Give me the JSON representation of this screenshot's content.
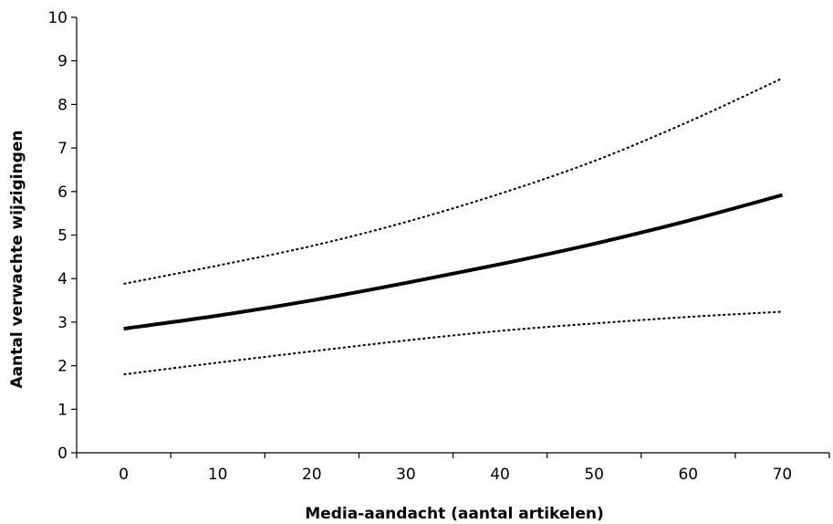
{
  "chart_data": {
    "type": "line",
    "title": "",
    "xlabel": "Media-aandacht (aantal artikelen)",
    "ylabel": "Aantal verwachte wijzigingen",
    "xlim": [
      -5,
      75
    ],
    "ylim": [
      0,
      10
    ],
    "x_ticks": [
      0,
      10,
      20,
      30,
      40,
      50,
      60,
      70
    ],
    "y_ticks": [
      0,
      1,
      2,
      3,
      4,
      5,
      6,
      7,
      8,
      9,
      10
    ],
    "grid": false,
    "legend": "none",
    "x": [
      0,
      10,
      20,
      30,
      40,
      50,
      60,
      70
    ],
    "series": [
      {
        "values": [
          3.88,
          4.3,
          4.75,
          5.3,
          5.95,
          6.7,
          7.6,
          8.6
        ],
        "style": "dotted",
        "width": 2,
        "color": "#000000"
      },
      {
        "values": [
          2.85,
          3.15,
          3.5,
          3.9,
          4.33,
          4.8,
          5.33,
          5.92
        ],
        "style": "solid",
        "width": 4,
        "color": "#000000"
      },
      {
        "values": [
          1.8,
          2.07,
          2.33,
          2.58,
          2.8,
          2.97,
          3.12,
          3.24
        ],
        "style": "dotted",
        "width": 2,
        "color": "#000000"
      }
    ]
  }
}
